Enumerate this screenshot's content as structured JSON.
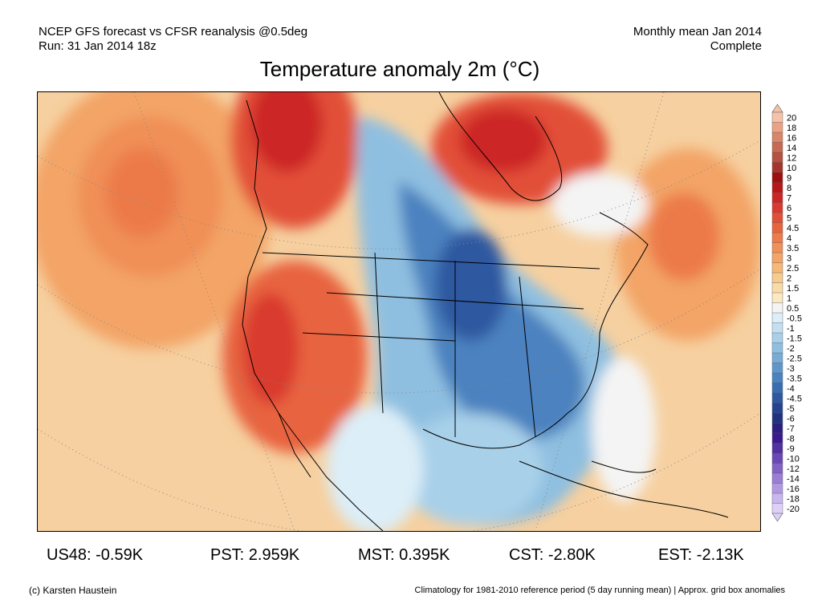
{
  "header": {
    "line1_left": "NCEP GFS forecast vs CFSR reanalysis @0.5deg",
    "line2_left": "Run: 31 Jan 2014 18z",
    "line1_right": "Monthly mean Jan 2014",
    "line2_right": "Complete"
  },
  "title": "Temperature anomaly 2m (°C)",
  "colorbar": {
    "labels": [
      "20",
      "18",
      "16",
      "14",
      "12",
      "10",
      "9",
      "8",
      "7",
      "6",
      "5",
      "4.5",
      "4",
      "3.5",
      "3",
      "2.5",
      "2",
      "1.5",
      "1",
      "0.5",
      "-0.5",
      "-1",
      "-1.5",
      "-2",
      "-2.5",
      "-3",
      "-3.5",
      "-4",
      "-4.5",
      "-5",
      "-6",
      "-7",
      "-8",
      "-9",
      "-10",
      "-12",
      "-14",
      "-16",
      "-18",
      "-20"
    ],
    "colors": [
      "#f3c2a8",
      "#eba283",
      "#d9856a",
      "#c76a53",
      "#b55140",
      "#a3352d",
      "#9c1010",
      "#b81717",
      "#cc2525",
      "#d93a2f",
      "#e24f38",
      "#e8643f",
      "#ec7a4a",
      "#f08f57",
      "#f3a466",
      "#f5b878",
      "#f7ca8d",
      "#f9dba5",
      "#fbe9c3",
      "#f4f4f4",
      "#dceef8",
      "#c3e0f2",
      "#a8d0e9",
      "#8fbfe0",
      "#77acd6",
      "#6097cb",
      "#4b82bf",
      "#3a6db0",
      "#2f58a0",
      "#26438f",
      "#233280",
      "#2b2080",
      "#3b1a8f",
      "#5130a0",
      "#6a48b5",
      "#8262c5",
      "#9a7dd5",
      "#b199e2",
      "#c8b6ee",
      "#ddd0f7"
    ]
  },
  "stats": [
    {
      "label": "US48: -0.59K"
    },
    {
      "label": "PST: 2.959K"
    },
    {
      "label": "MST: 0.395K"
    },
    {
      "label": "CST: -2.80K"
    },
    {
      "label": "EST: -2.13K"
    }
  ],
  "footer": {
    "left": "(c) Karsten Haustein",
    "right": "Climatology for 1981-2010 reference period (5 day running mean) | Approx. grid box anomalies"
  }
}
